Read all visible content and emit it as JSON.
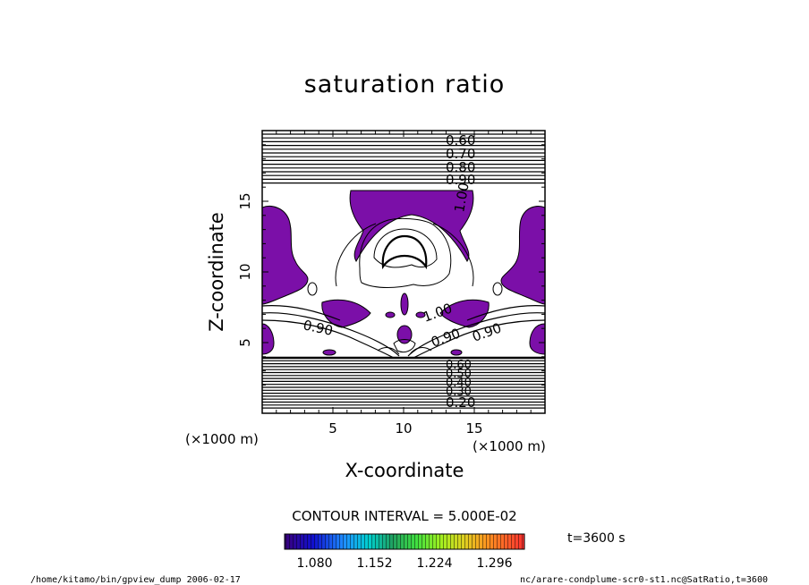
{
  "chart_data": {
    "type": "contour",
    "title": "saturation ratio",
    "xlabel": "X-coordinate",
    "ylabel": "Z-coordinate",
    "x_unit_label": "(×1000 m)",
    "y_unit_label": "(×1000 m)",
    "xlim": [
      0,
      20
    ],
    "ylim": [
      0,
      20
    ],
    "x_ticks": [
      5,
      10,
      15
    ],
    "y_ticks": [
      5,
      10,
      15
    ],
    "contour_interval_text": "CONTOUR INTERVAL = 5.000E-02",
    "contour_labels": [
      "0.60",
      "0.70",
      "0.80",
      "0.90",
      "1.00",
      "1.00",
      "0.90",
      "0.90",
      "0.90",
      "0.20"
    ],
    "stacked_low_labels": [
      "0.60",
      "0.50",
      "0.40",
      "0.30"
    ],
    "colorbar": {
      "tick_labels": [
        "1.080",
        "1.152",
        "1.224",
        "1.296"
      ],
      "ticks": [
        1.08,
        1.152,
        1.224,
        1.296
      ],
      "range": [
        1.044,
        1.332
      ],
      "colors": [
        "#4b0082",
        "#0000cd",
        "#1e90ff",
        "#00ced1",
        "#2e8b57",
        "#32cd32",
        "#7fff00",
        "#adff2f",
        "#daa520",
        "#ff8c00",
        "#ff6347",
        "#ff0000"
      ]
    },
    "fill_color": "#7b0fa8",
    "time_label": "t=3600 s",
    "footer_left": "/home/kitamo/bin/gpview_dump  2006-02-17",
    "footer_right": "nc/arare-condplume-scr0-st1.nc@SatRatio,t=3600"
  }
}
